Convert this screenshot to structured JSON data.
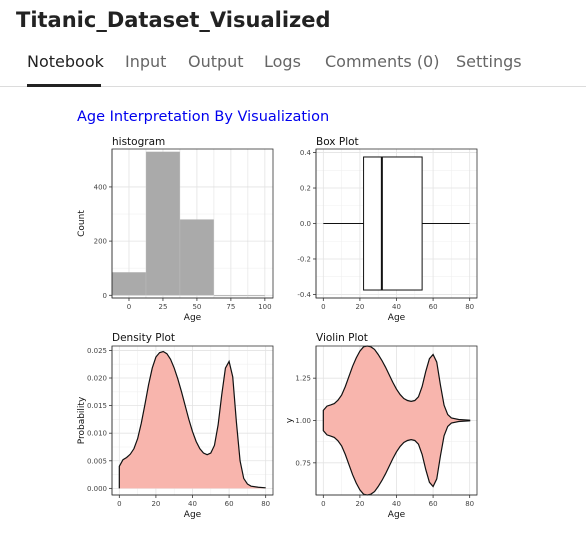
{
  "app": {
    "title": "Titanic_Dataset_Visualized"
  },
  "tabs": [
    {
      "label": "Notebook",
      "active": true
    },
    {
      "label": "Input",
      "active": false
    },
    {
      "label": "Output",
      "active": false
    },
    {
      "label": "Logs",
      "active": false
    },
    {
      "label": "Comments (0)",
      "active": false
    },
    {
      "label": "Settings",
      "active": false
    }
  ],
  "notebook": {
    "section_title": "Age Interpretation By Visualization"
  },
  "colors": {
    "accent_link": "#0000ee",
    "histogram_fill": "#aaaaaa",
    "density_fill": "#f8b5ad",
    "line": "#111111"
  },
  "chart_data": [
    {
      "type": "histogram",
      "title": "histogram",
      "xlabel": "Age",
      "ylabel": "Count",
      "xlim": [
        -12.5,
        106
      ],
      "ylim": [
        -10,
        540
      ],
      "bins": [
        {
          "x0": -12.5,
          "x1": 12.5,
          "count": 85
        },
        {
          "x0": 12.5,
          "x1": 37.5,
          "count": 530
        },
        {
          "x0": 37.5,
          "x1": 62.5,
          "count": 280
        },
        {
          "x0": 62.5,
          "x1": 87.5,
          "count": 0
        },
        {
          "x0": 87.5,
          "x1": 100,
          "count": 0
        }
      ],
      "xticks": [
        {
          "v": 0,
          "label": "0"
        },
        {
          "v": 25,
          "label": "25"
        },
        {
          "v": 50,
          "label": "50"
        },
        {
          "v": 75,
          "label": "75"
        },
        {
          "v": 100,
          "label": "100"
        }
      ],
      "yticks": [
        {
          "v": 0,
          "label": "0"
        },
        {
          "v": 200,
          "label": "200"
        },
        {
          "v": 400,
          "label": "400"
        }
      ]
    },
    {
      "type": "boxplot",
      "title": "Box Plot",
      "xlabel": "Age",
      "ylabel": "",
      "xlim": [
        -4,
        84
      ],
      "ylim": [
        -0.42,
        0.42
      ],
      "box": {
        "min": 0,
        "q1": 22,
        "median": 32,
        "q3": 54,
        "max": 80,
        "y_low": -0.375,
        "y_high": 0.375
      },
      "xticks": [
        {
          "v": 0,
          "label": "0"
        },
        {
          "v": 20,
          "label": "20"
        },
        {
          "v": 40,
          "label": "40"
        },
        {
          "v": 60,
          "label": "60"
        },
        {
          "v": 80,
          "label": "80"
        }
      ],
      "yticks": [
        {
          "v": 0.4,
          "label": "0.4"
        },
        {
          "v": 0.2,
          "label": "0.2"
        },
        {
          "v": 0.0,
          "label": "0.0"
        },
        {
          "v": -0.2,
          "label": "-0.2"
        },
        {
          "v": -0.4,
          "label": "-0.4"
        }
      ]
    },
    {
      "type": "density",
      "title": "Density Plot",
      "xlabel": "Age",
      "ylabel": "Probability",
      "xlim": [
        -4,
        84
      ],
      "ylim": [
        -0.0012,
        0.0258
      ],
      "points": [
        [
          0,
          0.004
        ],
        [
          2,
          0.0052
        ],
        [
          4,
          0.0056
        ],
        [
          6,
          0.0062
        ],
        [
          8,
          0.0072
        ],
        [
          10,
          0.009
        ],
        [
          12,
          0.0118
        ],
        [
          14,
          0.0152
        ],
        [
          16,
          0.0188
        ],
        [
          18,
          0.0218
        ],
        [
          20,
          0.0238
        ],
        [
          22,
          0.0246
        ],
        [
          24,
          0.0248
        ],
        [
          26,
          0.0244
        ],
        [
          28,
          0.0234
        ],
        [
          30,
          0.0218
        ],
        [
          32,
          0.0198
        ],
        [
          34,
          0.0175
        ],
        [
          36,
          0.015
        ],
        [
          38,
          0.0125
        ],
        [
          40,
          0.0103
        ],
        [
          42,
          0.0085
        ],
        [
          44,
          0.0072
        ],
        [
          46,
          0.0064
        ],
        [
          48,
          0.0061
        ],
        [
          50,
          0.0064
        ],
        [
          52,
          0.0078
        ],
        [
          54,
          0.0115
        ],
        [
          56,
          0.017
        ],
        [
          58,
          0.0218
        ],
        [
          60,
          0.023
        ],
        [
          62,
          0.0202
        ],
        [
          64,
          0.012
        ],
        [
          66,
          0.005
        ],
        [
          68,
          0.0018
        ],
        [
          70,
          0.0008
        ],
        [
          72,
          0.0004
        ],
        [
          76,
          0.0002
        ],
        [
          80,
          0.0001
        ]
      ],
      "xticks": [
        {
          "v": 0,
          "label": "0"
        },
        {
          "v": 20,
          "label": "20"
        },
        {
          "v": 40,
          "label": "40"
        },
        {
          "v": 60,
          "label": "60"
        },
        {
          "v": 80,
          "label": "80"
        }
      ],
      "yticks": [
        {
          "v": 0.025,
          "label": "0.025"
        },
        {
          "v": 0.02,
          "label": "0.020"
        },
        {
          "v": 0.015,
          "label": "0.015"
        },
        {
          "v": 0.01,
          "label": "0.010"
        },
        {
          "v": 0.005,
          "label": "0.005"
        },
        {
          "v": 0.0,
          "label": "0.000"
        }
      ]
    },
    {
      "type": "violin",
      "title": "Violin Plot",
      "xlabel": "Age",
      "ylabel": "y",
      "xlim": [
        -4,
        84
      ],
      "ylim": [
        0.56,
        1.44
      ],
      "center": 1.0,
      "points": [
        [
          0,
          0.06
        ],
        [
          2,
          0.085
        ],
        [
          4,
          0.092
        ],
        [
          6,
          0.1
        ],
        [
          8,
          0.12
        ],
        [
          10,
          0.15
        ],
        [
          12,
          0.2
        ],
        [
          14,
          0.26
        ],
        [
          16,
          0.32
        ],
        [
          18,
          0.37
        ],
        [
          20,
          0.41
        ],
        [
          22,
          0.435
        ],
        [
          24,
          0.44
        ],
        [
          26,
          0.435
        ],
        [
          28,
          0.42
        ],
        [
          30,
          0.39
        ],
        [
          32,
          0.355
        ],
        [
          34,
          0.315
        ],
        [
          36,
          0.27
        ],
        [
          38,
          0.225
        ],
        [
          40,
          0.185
        ],
        [
          42,
          0.153
        ],
        [
          44,
          0.13
        ],
        [
          46,
          0.118
        ],
        [
          48,
          0.113
        ],
        [
          50,
          0.118
        ],
        [
          52,
          0.14
        ],
        [
          54,
          0.2
        ],
        [
          56,
          0.29
        ],
        [
          58,
          0.365
        ],
        [
          60,
          0.39
        ],
        [
          62,
          0.345
        ],
        [
          64,
          0.21
        ],
        [
          66,
          0.09
        ],
        [
          68,
          0.035
        ],
        [
          70,
          0.015
        ],
        [
          74,
          0.006
        ],
        [
          80,
          0.002
        ]
      ],
      "xticks": [
        {
          "v": 0,
          "label": "0"
        },
        {
          "v": 20,
          "label": "20"
        },
        {
          "v": 40,
          "label": "40"
        },
        {
          "v": 60,
          "label": "60"
        },
        {
          "v": 80,
          "label": "80"
        }
      ],
      "yticks": [
        {
          "v": 1.25,
          "label": "1.25"
        },
        {
          "v": 1.0,
          "label": "1.00"
        },
        {
          "v": 0.75,
          "label": "0.75"
        }
      ]
    }
  ]
}
